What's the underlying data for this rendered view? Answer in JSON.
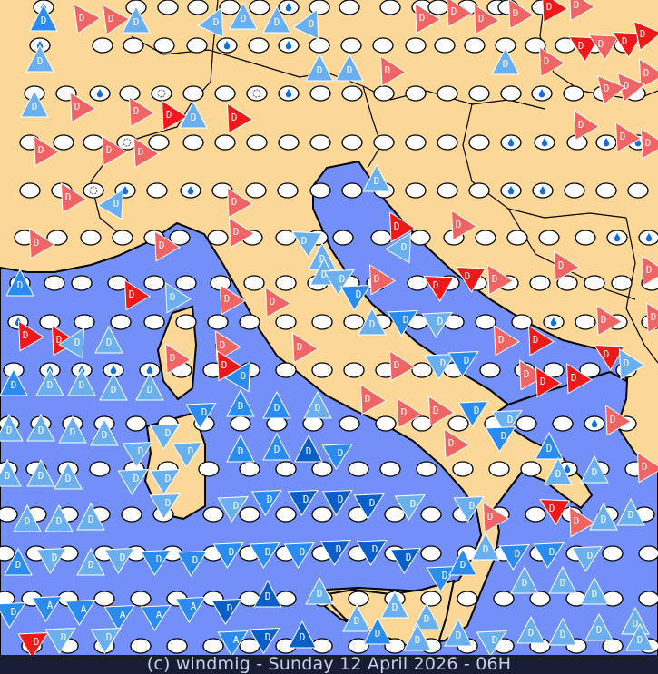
{
  "footer": {
    "caption": "(c) windmig - Sunday 12 April 2026 - 06H"
  },
  "colors": {
    "land": "#fcd898",
    "sea": "#7390f8",
    "border": "#000000",
    "station": "#ffffff",
    "droplet": "#1070e0",
    "wind_dark_blue": "#0a5ec8",
    "wind_mid_blue": "#2a8cf0",
    "wind_light_blue": "#6ab0f0",
    "wind_light_red": "#f06464",
    "wind_red": "#f01818"
  },
  "symbols": {
    "letter_d": "D",
    "letter_a": "A",
    "station_icon": "ellipse",
    "rain_icon": "droplet-icon",
    "sun_icon": "sun-ring-icon",
    "wind_icon": "wind-triangle-icon"
  }
}
